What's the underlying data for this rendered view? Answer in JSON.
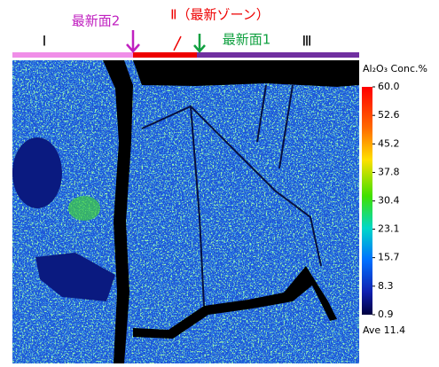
{
  "labels": {
    "zone_1": "Ⅰ",
    "zone_2": "Ⅱ（最新ゾーン）",
    "zone_3": "Ⅲ",
    "surface_2": "最新面2",
    "surface_1": "最新面1"
  },
  "colorbar": {
    "title": "Al₂O₃ Conc.%",
    "lim": [
      0.9,
      60
    ],
    "ticks": [
      {
        "value": 60,
        "label": "60.0"
      },
      52.6,
      45.2,
      37.8,
      30.4,
      23.1,
      15.7,
      8.3,
      0.9
    ],
    "average": "Ave 11.4"
  }
}
